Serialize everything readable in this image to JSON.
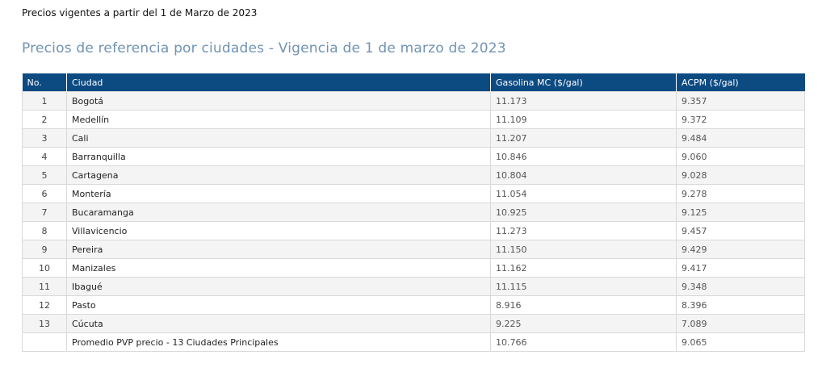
{
  "intro_text": "Precios vigentes a partir del 1 de Marzo de 2023",
  "heading": "Precios de referencia por ciudades - Vigencia de 1 de marzo de 2023",
  "colors": {
    "header_bg": "#0c4a82",
    "heading_text": "#6f93b4",
    "row_alt": "#f4f4f4"
  },
  "table": {
    "headers": [
      "No.",
      "Ciudad",
      "Gasolina MC ($/gal)",
      "ACPM ($/gal)"
    ],
    "rows": [
      [
        "1",
        "Bogotá",
        "11.173",
        "9.357"
      ],
      [
        "2",
        "Medellín",
        "11.109",
        "9.372"
      ],
      [
        "3",
        "Cali",
        "11.207",
        "9.484"
      ],
      [
        "4",
        "Barranquilla",
        "10.846",
        "9.060"
      ],
      [
        "5",
        "Cartagena",
        "10.804",
        "9.028"
      ],
      [
        "6",
        "Montería",
        "11.054",
        "9.278"
      ],
      [
        "7",
        "Bucaramanga",
        "10.925",
        "9.125"
      ],
      [
        "8",
        "Villavicencio",
        "11.273",
        "9.457"
      ],
      [
        "9",
        "Pereira",
        "11.150",
        "9.429"
      ],
      [
        "10",
        "Manizales",
        "11.162",
        "9.417"
      ],
      [
        "11",
        "Ibagué",
        "11.115",
        "9.348"
      ],
      [
        "12",
        "Pasto",
        "8.916",
        "8.396"
      ],
      [
        "13",
        "Cúcuta",
        "9.225",
        "7.089"
      ],
      [
        "",
        "Promedio PVP precio - 13 Ciudades Principales",
        "10.766",
        "9.065"
      ]
    ]
  }
}
